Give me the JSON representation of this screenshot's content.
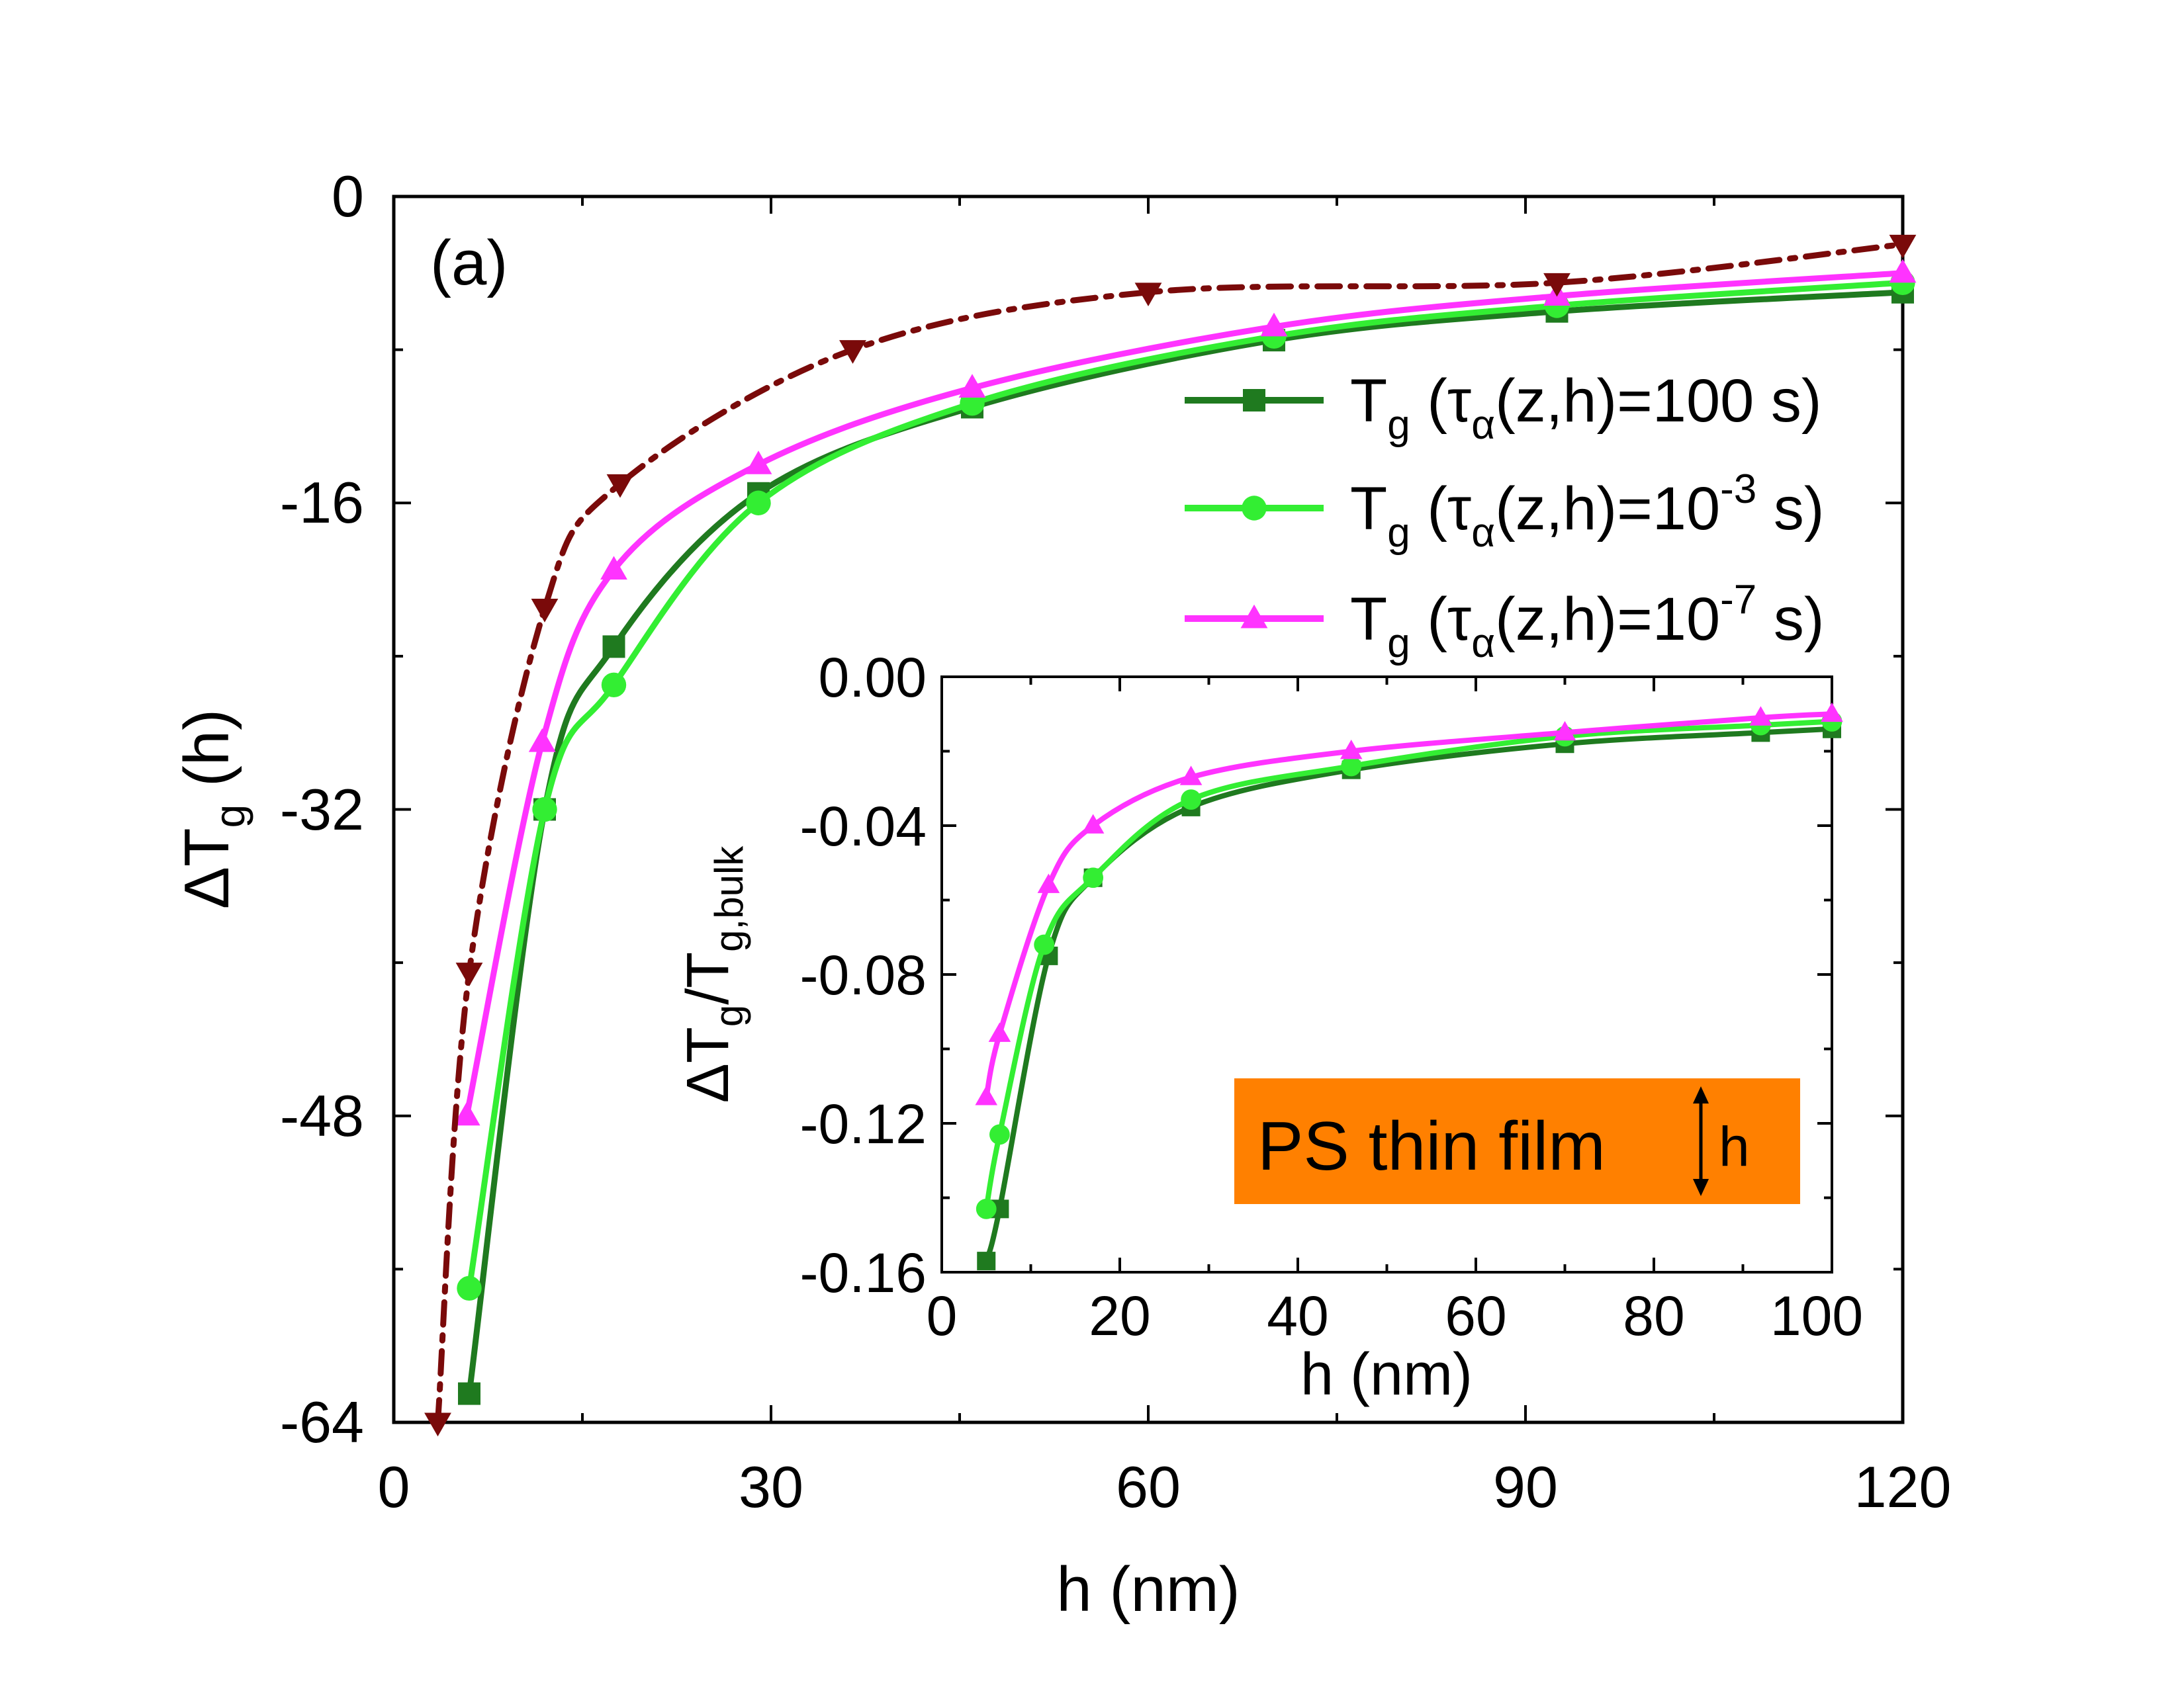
{
  "panel_label": "(a)",
  "colors": {
    "dark_green": "#1f7a1f",
    "light_green": "#33ee33",
    "magenta": "#ff33ff",
    "dark_red": "#7a0a0a",
    "orange": "#ff8000"
  },
  "legend": [
    {
      "key": "s100",
      "base": "T",
      "sub": "g",
      "open": " (",
      "tau": "τ",
      "tau_sub": "α",
      "mid": "(z,h)=100 s)",
      "sup": "",
      "close": ""
    },
    {
      "key": "s1e3",
      "base": "T",
      "sub": "g",
      "open": " (",
      "tau": "τ",
      "tau_sub": "α",
      "mid": "(z,h)=10",
      "sup": "-3",
      "close": " s)"
    },
    {
      "key": "s1e7",
      "base": "T",
      "sub": "g",
      "open": " (",
      "tau": "τ",
      "tau_sub": "α",
      "mid": "(z,h)=10",
      "sup": "-7",
      "close": " s)"
    }
  ],
  "film_label": "PS thin film",
  "film_h_label": "h",
  "chart_data": [
    {
      "type": "line",
      "title": "",
      "xlabel": "h (nm)",
      "ylabel": {
        "delta": "Δ",
        "base": "T",
        "sub": "g",
        "rest": " (h)"
      },
      "xlim": [
        0,
        120
      ],
      "ylim": [
        -64,
        0
      ],
      "xticks": [
        0,
        30,
        60,
        90,
        120
      ],
      "yticks": [
        0,
        -16,
        -32,
        -48,
        -64
      ],
      "grid": false,
      "series": [
        {
          "name": "Tg (τα(z,h)=100 s)",
          "marker": "square",
          "color": "#1f7a1f",
          "x": [
            6,
            12,
            17.5,
            29,
            46,
            70,
            92.5,
            120
          ],
          "y": [
            -62.5,
            -32,
            -23.5,
            -15.5,
            -11,
            -7.5,
            -6,
            -5
          ]
        },
        {
          "name": "Tg (τα(z,h)=10^-3 s)",
          "marker": "circle",
          "color": "#33ee33",
          "x": [
            6,
            12,
            17.5,
            29,
            46,
            70,
            92.5,
            120
          ],
          "y": [
            -57,
            -32,
            -25.5,
            -16,
            -10.8,
            -7.3,
            -5.7,
            -4.5
          ]
        },
        {
          "name": "Tg (τα(z,h)=10^-7 s)",
          "marker": "triangle-up",
          "color": "#ff33ff",
          "x": [
            5.8,
            11.8,
            17.5,
            29,
            46,
            70,
            92.5,
            120
          ],
          "y": [
            -48,
            -28.5,
            -19.5,
            -14,
            -10,
            -6.8,
            -5.2,
            -4
          ]
        },
        {
          "name": "",
          "marker": "triangle-down",
          "color": "#7a0a0a",
          "linestyle": "dash-dot",
          "x": [
            3.5,
            6,
            12,
            18,
            36.5,
            60,
            92.5,
            120
          ],
          "y": [
            -64,
            -40.5,
            -21.5,
            -15,
            -8,
            -5,
            -4.5,
            -2.5
          ]
        }
      ]
    },
    {
      "type": "line",
      "title": "",
      "xlabel": "h (nm)",
      "ylabel": {
        "delta": "Δ",
        "base": "T",
        "sub": "g",
        "slash": "/T",
        "sub2": "g,bulk"
      },
      "xlim": [
        0,
        100
      ],
      "ylim": [
        -0.16,
        0
      ],
      "xticks": [
        0,
        20,
        40,
        60,
        80,
        100
      ],
      "yticks": [
        "0.00",
        "-0.04",
        "-0.08",
        "-0.12",
        "-0.16"
      ],
      "grid": false,
      "series": [
        {
          "name": "Tg (τα(z,h)=100 s)",
          "marker": "square",
          "color": "#1f7a1f",
          "x": [
            5,
            6.5,
            12,
            17,
            28,
            46,
            70,
            92,
            100
          ],
          "y": [
            -0.157,
            -0.143,
            -0.075,
            -0.054,
            -0.035,
            -0.025,
            -0.018,
            -0.015,
            -0.014
          ]
        },
        {
          "name": "Tg (τα(z,h)=10^-3 s)",
          "marker": "circle",
          "color": "#33ee33",
          "x": [
            5,
            6.5,
            11.5,
            17,
            28,
            46,
            70,
            92,
            100
          ],
          "y": [
            -0.143,
            -0.123,
            -0.072,
            -0.054,
            -0.033,
            -0.024,
            -0.016,
            -0.013,
            -0.012
          ]
        },
        {
          "name": "Tg (τα(z,h)=10^-7 s)",
          "marker": "triangle-up",
          "color": "#ff33ff",
          "x": [
            5,
            6.5,
            12,
            17,
            28,
            46,
            70,
            92,
            100
          ],
          "y": [
            -0.113,
            -0.096,
            -0.056,
            -0.04,
            -0.027,
            -0.02,
            -0.015,
            -0.011,
            -0.01
          ]
        }
      ]
    }
  ]
}
